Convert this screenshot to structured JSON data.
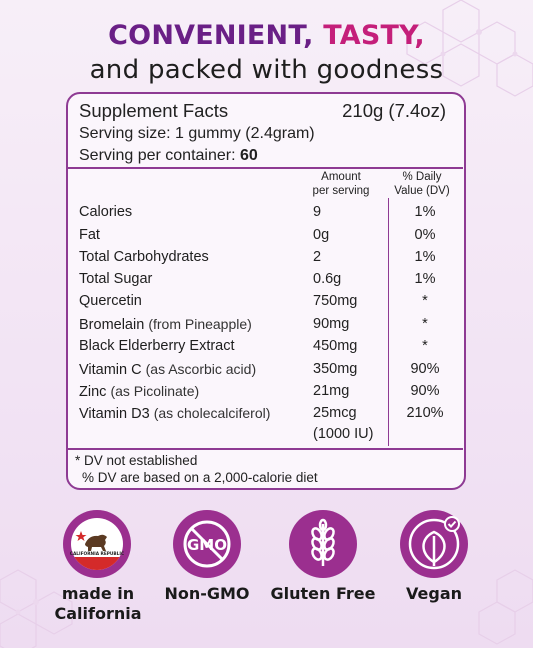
{
  "headline": {
    "part1": "CONVENIENT,",
    "part2": "TASTY,",
    "line2": "and packed with goodness"
  },
  "facts": {
    "title": "Supplement Facts",
    "weight": "210g (7.4oz)",
    "serving_size": "Serving size: 1 gummy (2.4gram)",
    "servings_label": "Serving per container:",
    "servings_value": "60",
    "col_amount_1": "Amount",
    "col_amount_2": "per serving",
    "col_dv_1": "% Daily",
    "col_dv_2": "Value (DV)",
    "rows": [
      {
        "name": "Calories",
        "sub": "",
        "amount": "9",
        "dv": "1%"
      },
      {
        "name": "Fat",
        "sub": "",
        "amount": "0g",
        "dv": "0%"
      },
      {
        "name": "Total Carbohydrates",
        "sub": "",
        "amount": "2",
        "dv": "1%"
      },
      {
        "name": "Total Sugar",
        "sub": "",
        "amount": "0.6g",
        "dv": "1%"
      },
      {
        "name": "Quercetin",
        "sub": "",
        "amount": "750mg",
        "dv": "*"
      },
      {
        "name": "Bromelain",
        "sub": "(from Pineapple)",
        "amount": "90mg",
        "dv": "*"
      },
      {
        "name": "Black Elderberry Extract",
        "sub": "",
        "amount": "450mg",
        "dv": "*"
      },
      {
        "name": "Vitamin C",
        "sub": "(as Ascorbic acid)",
        "amount": "350mg",
        "dv": "90%"
      },
      {
        "name": "Zinc",
        "sub": "(as Picolinate)",
        "amount": "21mg",
        "dv": "90%"
      },
      {
        "name": "Vitamin D3",
        "sub": "(as cholecalciferol)",
        "amount": "25mcg",
        "dv": "210%"
      }
    ],
    "d3_extra": "(1000 IU)",
    "footnote1": "* DV not established",
    "footnote2": "% DV are based on a 2,000-calorie diet"
  },
  "badges": {
    "california_flag_text": "CALIFORNIA REPUBLIC",
    "california_label_1": "made in",
    "california_label_2": "California",
    "gmo_icon_text": "GMO",
    "gmo_label": "Non-GMO",
    "gluten_label": "Gluten Free",
    "vegan_label": "Vegan"
  },
  "colors": {
    "purple": "#6a1f86",
    "magenta": "#c41f7a",
    "border": "#8e3a93",
    "badge": "#9b2f8f",
    "flag_red": "#d42a2a"
  }
}
